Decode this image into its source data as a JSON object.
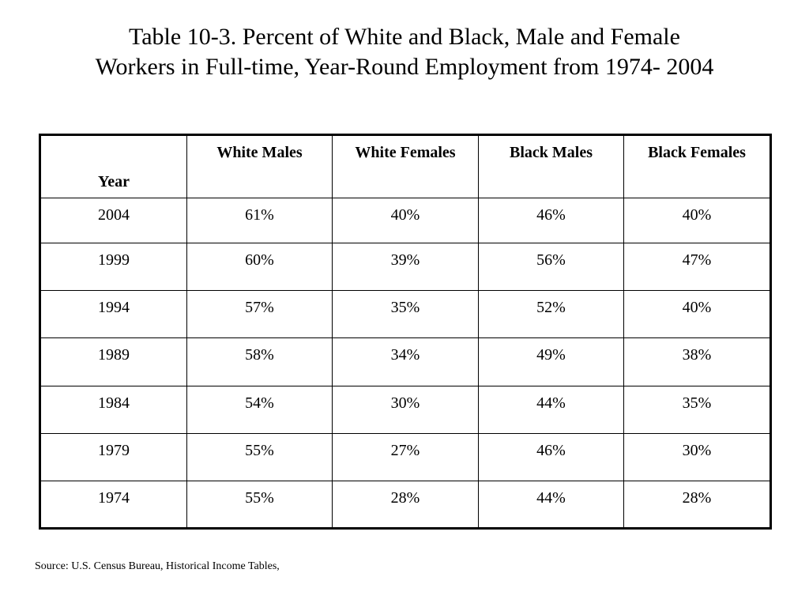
{
  "title": {
    "line1": "Table 10-3. Percent of White and Black, Male and Female",
    "line2": "Workers in Full-time, Year-Round Employment from 1974- 2004"
  },
  "table": {
    "headers": [
      "Year",
      "White Males",
      "White Females",
      "Black Males",
      "Black Females"
    ],
    "rows": [
      [
        "2004",
        "61%",
        "40%",
        "46%",
        "40%"
      ],
      [
        "1999",
        "60%",
        "39%",
        "56%",
        "47%"
      ],
      [
        "1994",
        "57%",
        "35%",
        "52%",
        "40%"
      ],
      [
        "1989",
        "58%",
        "34%",
        "49%",
        "38%"
      ],
      [
        "1984",
        "54%",
        "30%",
        "44%",
        "35%"
      ],
      [
        "1979",
        "55%",
        "27%",
        "46%",
        "30%"
      ],
      [
        "1974",
        "55%",
        "28%",
        "44%",
        "28%"
      ]
    ]
  },
  "source": "Source: U.S. Census Bureau, Historical Income Tables,"
}
